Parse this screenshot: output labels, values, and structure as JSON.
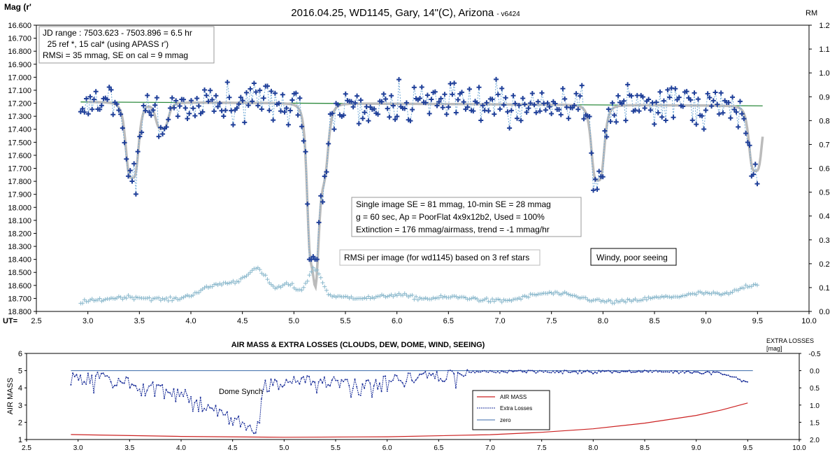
{
  "chart_data": [
    {
      "type": "scatter",
      "title": "2016.04.25,  WD1145, Gary, 14\"(C), Arizona",
      "title_suffix": "- v6424",
      "ylabel": "Mag (r'",
      "y2label": "RM",
      "xlabel": "UT=",
      "xlim": [
        2.5,
        10.0
      ],
      "x_ticks": [
        "2.5",
        "3.0",
        "3.5",
        "4.0",
        "4.5",
        "5.0",
        "5.5",
        "6.0",
        "6.5",
        "7.0",
        "7.5",
        "8.0",
        "8.5",
        "9.0",
        "9.5",
        "10.0"
      ],
      "ylim": [
        16.6,
        18.8
      ],
      "y_reversed": true,
      "y_ticks": [
        "16.600",
        "16.700",
        "16.800",
        "16.900",
        "17.000",
        "17.100",
        "17.200",
        "17.300",
        "17.400",
        "17.500",
        "17.600",
        "17.700",
        "17.800",
        "17.900",
        "18.000",
        "18.100",
        "18.200",
        "18.300",
        "18.400",
        "18.500",
        "18.600",
        "18.700",
        "18.800"
      ],
      "y2lim": [
        0.0,
        1.2
      ],
      "y2_ticks": [
        "1.2",
        "1.1",
        "1.0",
        "0.9",
        "0.8",
        "0.7",
        "0.6",
        "0.5",
        "0.4",
        "0.3",
        "0.2",
        "0.1",
        "0.0"
      ],
      "grid": false,
      "info_box": {
        "line1": "JD range  : 7503.623 - 7503.896 = 6.5 hr",
        "line2": "  25 ref *, 15 cal* (using APASS r')",
        "line3": "RMSi = 35 mmag, SE on cal = 9 mmag"
      },
      "stats_box": {
        "line1": "Single image SE = 81 mmag, 10-min SE = 28 mmag",
        "line2": "g = 60 sec, Ap = PoorFlat 4x9x12b2, Used = 100%",
        "line3": "Extinction = 176 mmag/airmass, trend = -1 mmag/hr"
      },
      "rmsi_label": "RMSi per image (for wd1145) based on 3 ref stars",
      "weather_label": "Windy, poor seeing",
      "colors": {
        "mag": "#1f3f99",
        "dotted": "#6fa8d6",
        "model": "#bbbbbb",
        "baseline": "#2e8b3e",
        "rmsi": "#8ab8cc"
      },
      "baseline_mag": [
        17.19,
        17.22
      ],
      "dips": [
        {
          "center": 3.43,
          "depth": 0.58
        },
        {
          "center": 3.72,
          "depth": 0.2
        },
        {
          "center": 5.18,
          "depth": 1.15
        },
        {
          "center": 5.27,
          "depth": 0.55
        },
        {
          "center": 7.95,
          "depth": 0.58
        },
        {
          "center": 9.48,
          "depth": 0.5
        }
      ]
    },
    {
      "type": "line",
      "title": "AIR MASS & EXTRA LOSSES (CLOUDS, DEW, DOME, WIND, SEEING)",
      "ylabel": "AIR MASS",
      "y2label_line1": "EXTRA LOSSES",
      "y2label_line2": "[mag]",
      "xlim": [
        2.5,
        10.0
      ],
      "x_ticks": [
        "2.5",
        "3.0",
        "3.5",
        "4.0",
        "4.5",
        "5.0",
        "5.5",
        "6.0",
        "6.5",
        "7.0",
        "7.5",
        "8.0",
        "8.5",
        "9.0",
        "9.5",
        "10.0"
      ],
      "ylim": [
        1,
        6
      ],
      "y_ticks": [
        "6",
        "5",
        "4",
        "3",
        "2",
        "1"
      ],
      "y2_ticks": [
        "-0.5",
        "0.0",
        "0.5",
        "1.0",
        "1.5",
        "2.0"
      ],
      "annotation": "Dome Synch",
      "series": [
        {
          "name": "AIR MASS",
          "color": "#cc2222",
          "x": [
            2.93,
            4.0,
            5.0,
            6.0,
            7.0,
            7.5,
            8.0,
            8.5,
            9.0,
            9.25,
            9.5
          ],
          "values": [
            1.29,
            1.18,
            1.13,
            1.16,
            1.28,
            1.42,
            1.62,
            1.95,
            2.4,
            2.72,
            3.12
          ]
        },
        {
          "name": "Extra Losses",
          "color": "#1a2e99"
        },
        {
          "name": "zero",
          "color": "#3a6aa8"
        }
      ],
      "extra_losses_envelope": [
        [
          2.93,
          0.05
        ],
        [
          3.5,
          0.3
        ],
        [
          3.8,
          0.5
        ],
        [
          4.1,
          0.7
        ],
        [
          4.3,
          1.05
        ],
        [
          4.5,
          1.35
        ],
        [
          4.75,
          1.6
        ],
        [
          4.8,
          0.4
        ],
        [
          5.1,
          0.25
        ],
        [
          5.4,
          0.25
        ],
        [
          5.8,
          0.35
        ],
        [
          6.1,
          0.2
        ],
        [
          6.6,
          0.1
        ],
        [
          6.8,
          0.02
        ],
        [
          7.5,
          0.01
        ],
        [
          8.5,
          0.01
        ],
        [
          9.2,
          0.05
        ],
        [
          9.35,
          0.15
        ],
        [
          9.5,
          0.35
        ]
      ]
    }
  ]
}
